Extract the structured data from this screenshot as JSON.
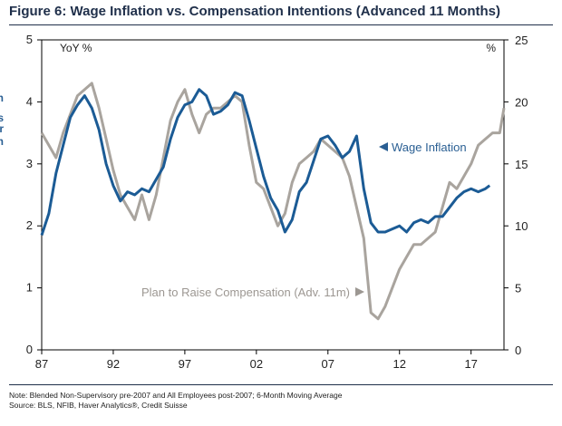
{
  "title": "Figure 6: Wage Inflation vs. Compensation Intentions (Advanced 11 Months)",
  "footnote": "Note: Blended Non-Supervisory pre-2007 and All Employees post-2007; 6-Month Moving Average",
  "source": "Source: BLS, NFIB, Haver Analytics®, Credit Suisse",
  "colors": {
    "wage": "#1b5b95",
    "plan": "#a9a49e",
    "title": "#1f2f4a",
    "annotation_wage": "#2a5f93",
    "annotation_plan": "#9c9792"
  },
  "chart_data": {
    "type": "line",
    "title": "Figure 6: Wage Inflation vs. Compensation Intentions (Advanced 11 Months)",
    "left_axis": {
      "label": "YoY %",
      "range": [
        0,
        5
      ],
      "ticks": [
        "0",
        "1",
        "2",
        "3",
        "4",
        "5"
      ]
    },
    "right_axis": {
      "label": "%",
      "range": [
        0,
        25
      ],
      "ticks": [
        "0",
        "5",
        "10",
        "15",
        "20",
        "25"
      ]
    },
    "x_axis": {
      "range": [
        1987,
        2019.3
      ],
      "ticks": [
        1987,
        1992,
        1997,
        2002,
        2007,
        2012,
        2017
      ],
      "tick_labels": [
        "87",
        "92",
        "97",
        "02",
        "07",
        "12",
        "17"
      ]
    },
    "annotations": [
      {
        "text": "Wage Inflation",
        "series": "Wage Inflation"
      },
      {
        "text": "Plan to Raise Compensation (Adv. 11m)",
        "series": "Plan to Raise Compensation (Adv. 11m)"
      }
    ],
    "series": [
      {
        "name": "Wage Inflation",
        "axis": "left",
        "x": [
          1987.0,
          1987.5,
          1988.0,
          1988.5,
          1989.0,
          1989.5,
          1990.0,
          1990.5,
          1991.0,
          1991.5,
          1992.0,
          1992.5,
          1993.0,
          1993.5,
          1994.0,
          1994.5,
          1995.0,
          1995.5,
          1996.0,
          1996.5,
          1997.0,
          1997.5,
          1998.0,
          1998.5,
          1999.0,
          1999.5,
          2000.0,
          2000.5,
          2001.0,
          2001.5,
          2002.0,
          2002.5,
          2003.0,
          2003.5,
          2004.0,
          2004.5,
          2005.0,
          2005.5,
          2006.0,
          2006.5,
          2007.0,
          2007.5,
          2008.0,
          2008.5,
          2009.0,
          2009.5,
          2010.0,
          2010.5,
          2011.0,
          2011.5,
          2012.0,
          2012.5,
          2013.0,
          2013.5,
          2014.0,
          2014.5,
          2015.0,
          2015.5,
          2016.0,
          2016.5,
          2017.0,
          2017.5,
          2018.0,
          2018.3
        ],
        "values": [
          1.85,
          2.2,
          2.85,
          3.3,
          3.75,
          3.95,
          4.1,
          3.9,
          3.55,
          3.0,
          2.65,
          2.4,
          2.55,
          2.5,
          2.6,
          2.55,
          2.75,
          2.95,
          3.4,
          3.75,
          3.95,
          4.0,
          4.2,
          4.1,
          3.8,
          3.85,
          3.95,
          4.15,
          4.1,
          3.7,
          3.25,
          2.8,
          2.45,
          2.25,
          1.9,
          2.1,
          2.55,
          2.7,
          3.05,
          3.4,
          3.45,
          3.3,
          3.1,
          3.2,
          3.45,
          2.6,
          2.05,
          1.9,
          1.9,
          1.95,
          2.0,
          1.9,
          2.05,
          2.1,
          2.05,
          2.15,
          2.15,
          2.3,
          2.45,
          2.55,
          2.6,
          2.55,
          2.6,
          2.65
        ]
      },
      {
        "name": "Plan to Raise Compensation (Adv. 11m)",
        "axis": "right",
        "x": [
          1987.0,
          1987.5,
          1988.0,
          1988.5,
          1989.0,
          1989.5,
          1990.0,
          1990.5,
          1991.0,
          1991.5,
          1992.0,
          1992.5,
          1993.0,
          1993.5,
          1994.0,
          1994.5,
          1995.0,
          1995.5,
          1996.0,
          1996.5,
          1997.0,
          1997.5,
          1998.0,
          1998.5,
          1999.0,
          1999.5,
          2000.0,
          2000.5,
          2001.0,
          2001.5,
          2002.0,
          2002.5,
          2003.0,
          2003.5,
          2004.0,
          2004.5,
          2005.0,
          2005.5,
          2006.0,
          2006.5,
          2007.0,
          2007.5,
          2008.0,
          2008.5,
          2009.0,
          2009.5,
          2010.0,
          2010.5,
          2011.0,
          2011.5,
          2012.0,
          2012.5,
          2013.0,
          2013.5,
          2014.0,
          2014.5,
          2015.0,
          2015.5,
          2016.0,
          2016.5,
          2017.0,
          2017.5,
          2018.0,
          2018.5,
          2019.0,
          2019.3
        ],
        "values": [
          17.5,
          16.5,
          15.5,
          17.5,
          19.0,
          20.5,
          21.0,
          21.5,
          19.5,
          17.0,
          14.5,
          12.5,
          11.5,
          10.5,
          12.5,
          10.5,
          12.5,
          15.5,
          18.5,
          20.0,
          21.0,
          19.0,
          17.5,
          19.0,
          19.5,
          19.5,
          20.0,
          20.5,
          20.0,
          16.5,
          13.5,
          13.0,
          11.5,
          10.0,
          11.0,
          13.5,
          15.0,
          15.5,
          16.0,
          17.0,
          16.5,
          16.0,
          15.5,
          14.0,
          11.5,
          9.0,
          3.0,
          2.5,
          3.5,
          5.0,
          6.5,
          7.5,
          8.5,
          8.5,
          9.0,
          9.5,
          11.5,
          13.5,
          13.0,
          14.0,
          15.0,
          16.5,
          17.0,
          17.5,
          17.5,
          19.5
        ]
      }
    ]
  }
}
